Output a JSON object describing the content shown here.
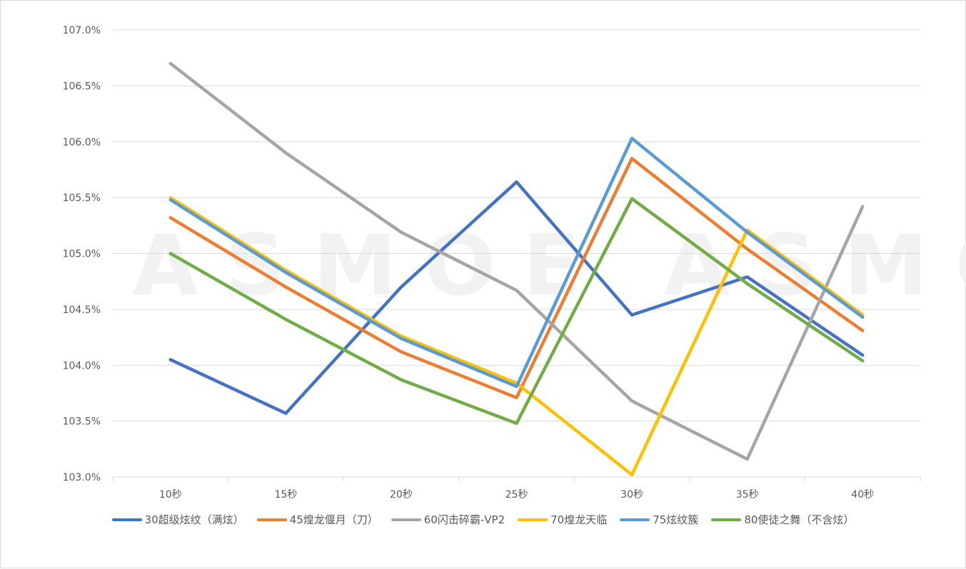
{
  "watermark": "ASMOE ASMOE",
  "chart_data": {
    "type": "line",
    "title": "",
    "xlabel": "",
    "ylabel": "",
    "categories": [
      "10秒",
      "15秒",
      "20秒",
      "25秒",
      "30秒",
      "35秒",
      "40秒"
    ],
    "ylim": [
      103.0,
      107.0
    ],
    "ytick_values": [
      103.0,
      103.5,
      104.0,
      104.5,
      105.0,
      105.5,
      106.0,
      106.5,
      107.0
    ],
    "ytick_labels": [
      "103.0%",
      "103.5%",
      "104.0%",
      "104.5%",
      "105.0%",
      "105.5%",
      "106.0%",
      "106.5%",
      "107.0%"
    ],
    "grid": true,
    "legend_position": "bottom",
    "series": [
      {
        "name": "30超级炫纹（满炫）",
        "color": "#4472C4",
        "values": [
          104.05,
          103.57,
          104.7,
          105.64,
          104.45,
          104.79,
          104.09
        ]
      },
      {
        "name": "45煌龙偃月（刀）",
        "color": "#ED7D31",
        "values": [
          105.32,
          104.7,
          104.12,
          103.71,
          105.85,
          105.04,
          104.31
        ]
      },
      {
        "name": "60闪击碎霸-VP2",
        "color": "#A5A5A5",
        "values": [
          106.7,
          105.9,
          105.19,
          104.67,
          103.68,
          103.16,
          105.42
        ]
      },
      {
        "name": "70煌龙天临",
        "color": "#FFC000",
        "values": [
          105.5,
          104.85,
          104.26,
          103.84,
          103.02,
          105.21,
          104.45
        ]
      },
      {
        "name": "75炫纹簇",
        "color": "#5B9BD5",
        "values": [
          105.48,
          104.83,
          104.24,
          103.81,
          106.03,
          105.19,
          104.43
        ]
      },
      {
        "name": "80使徒之舞（不含炫）",
        "color": "#70AD47",
        "values": [
          105.0,
          104.41,
          103.87,
          103.48,
          105.49,
          104.73,
          104.04
        ]
      }
    ]
  }
}
